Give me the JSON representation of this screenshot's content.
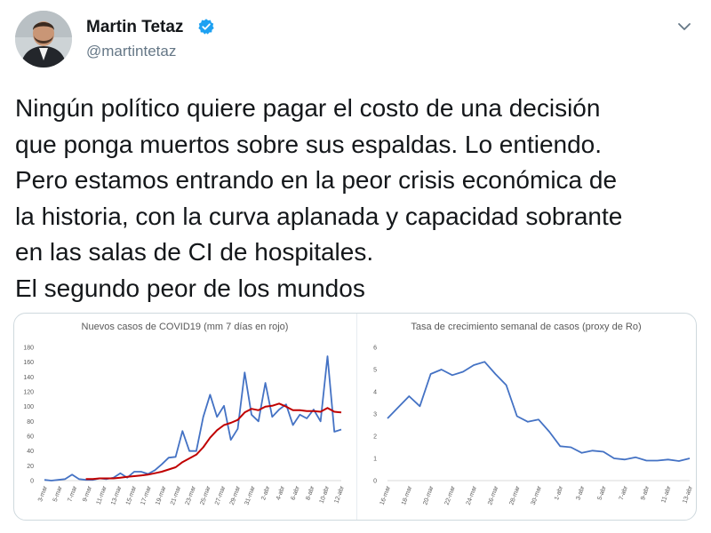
{
  "tweet": {
    "author": {
      "name": "Martin Tetaz",
      "handle": "@martintetaz"
    },
    "text_lines": [
      "Ningún político quiere pagar el costo de una decisión",
      "que ponga muertos sobre sus espaldas. Lo entiendo.",
      "Pero estamos entrando en la peor crisis económica de",
      "la historia, con la curva aplanada y capacidad sobrante",
      "en las salas de CI de hospitales.",
      "El segundo peor de los mundos"
    ]
  },
  "icons": {
    "verified": "verified-badge-icon",
    "menu": "chevron-down-icon",
    "avatar": "profile-photo"
  },
  "colors": {
    "series_blue": "#4472c4",
    "series_red": "#c00000",
    "verified": "#1da1f2"
  },
  "chart_data": [
    {
      "type": "line",
      "title": "Nuevos casos de COVID19 (mm 7 días en rojo)",
      "ylim": [
        0,
        180
      ],
      "yticks": [
        0,
        20,
        40,
        60,
        80,
        100,
        120,
        140,
        160,
        180
      ],
      "x_tick_labels": [
        "3-mar",
        "5-mar",
        "7-mar",
        "9-mar",
        "11-mar",
        "13-mar",
        "15-mar",
        "17-mar",
        "19-mar",
        "21-mar",
        "23-mar",
        "25-mar",
        "27-mar",
        "29-mar",
        "31-mar",
        "2-abr",
        "4-abr",
        "6-abr",
        "8-abr",
        "10-abr",
        "12-abr"
      ],
      "series": [
        {
          "color": "#4472c4",
          "values": [
            1,
            0,
            1,
            2,
            8,
            2,
            1,
            1,
            3,
            2,
            4,
            10,
            4,
            12,
            12,
            9,
            14,
            22,
            31,
            32,
            67,
            40,
            40,
            86,
            116,
            86,
            101,
            55,
            70,
            146,
            89,
            80,
            132,
            86,
            96,
            103,
            75,
            89,
            84,
            96,
            80,
            168,
            66,
            69
          ]
        },
        {
          "color": "#c00000",
          "values": [
            null,
            null,
            null,
            null,
            null,
            null,
            2,
            2,
            3,
            3,
            3,
            4,
            5,
            6,
            7,
            8,
            10,
            12,
            15,
            18,
            25,
            30,
            35,
            45,
            58,
            68,
            75,
            78,
            82,
            92,
            97,
            95,
            100,
            101,
            104,
            100,
            95,
            95,
            94,
            94,
            93,
            98,
            93,
            92
          ]
        }
      ]
    },
    {
      "type": "line",
      "title": "Tasa de crecimiento semanal de casos (proxy de Ro)",
      "ylim": [
        0,
        6
      ],
      "yticks": [
        0,
        1,
        2,
        3,
        4,
        5,
        6
      ],
      "x_tick_labels": [
        "16-mar",
        "18-mar",
        "20-mar",
        "22-mar",
        "24-mar",
        "26-mar",
        "28-mar",
        "30-mar",
        "1-abr",
        "3-abr",
        "5-abr",
        "7-abr",
        "9-abr",
        "11-abr",
        "13-abr"
      ],
      "series": [
        {
          "color": "#4472c4",
          "values": [
            2.8,
            3.3,
            3.8,
            3.35,
            4.8,
            5.0,
            4.75,
            4.9,
            5.2,
            5.35,
            4.8,
            4.3,
            2.9,
            2.65,
            2.75,
            2.2,
            1.55,
            1.5,
            1.25,
            1.35,
            1.3,
            1.0,
            0.95,
            1.05,
            0.9,
            0.9,
            0.95,
            0.88,
            1.0
          ]
        }
      ]
    }
  ]
}
